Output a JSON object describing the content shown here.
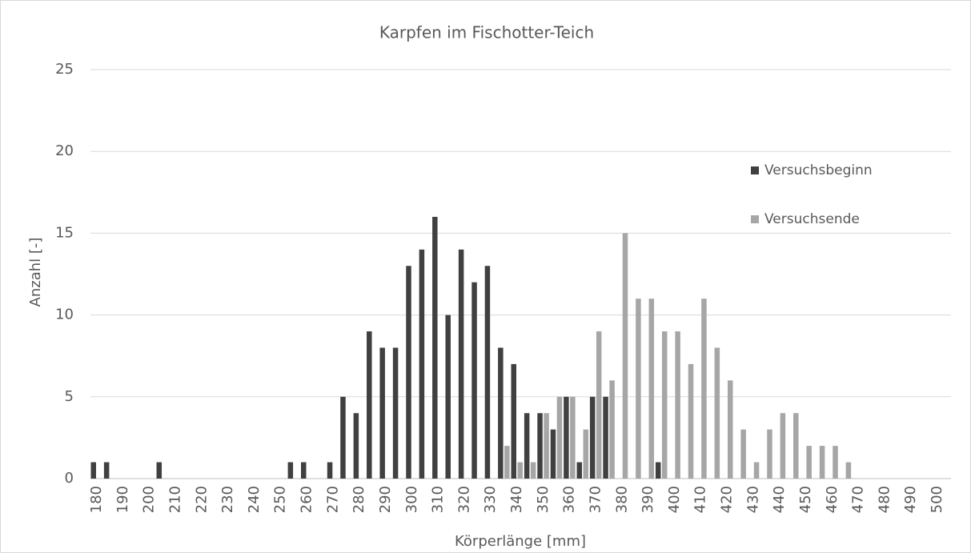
{
  "chart_data": {
    "type": "bar",
    "title": "Karpfen im Fischotter-Teich",
    "x_label": "Körperlänge [mm]",
    "y_label": "Anzahl [-]",
    "categories": [
      "180",
      null,
      "190",
      null,
      "200",
      null,
      "210",
      null,
      "220",
      null,
      "230",
      null,
      "240",
      null,
      "250",
      null,
      "260",
      null,
      "270",
      null,
      "280",
      null,
      "290",
      null,
      "300",
      null,
      "310",
      null,
      "320",
      null,
      "330",
      null,
      "340",
      null,
      "350",
      null,
      "360",
      null,
      "370",
      null,
      "380",
      null,
      "390",
      null,
      "400",
      null,
      "410",
      null,
      "420",
      null,
      "430",
      null,
      "440",
      null,
      "450",
      null,
      "460",
      null,
      "470",
      null,
      "480",
      null,
      "490",
      null,
      "500"
    ],
    "series": [
      {
        "name": "Versuchsbeginn",
        "color": "#404040",
        "values": [
          1,
          1,
          0,
          0,
          0,
          1,
          0,
          0,
          0,
          0,
          0,
          0,
          0,
          0,
          0,
          1,
          1,
          0,
          1,
          5,
          4,
          9,
          8,
          8,
          13,
          14,
          16,
          10,
          14,
          12,
          13,
          8,
          7,
          4,
          4,
          3,
          5,
          1,
          5,
          5,
          0,
          0,
          0,
          1,
          0,
          0,
          0,
          0,
          0,
          0,
          0,
          0,
          0,
          0,
          0,
          0,
          0,
          0,
          0,
          0,
          0,
          0,
          0,
          0,
          0
        ]
      },
      {
        "name": "Versuchsende",
        "color": "#a6a6a6",
        "values": [
          0,
          0,
          0,
          0,
          0,
          0,
          0,
          0,
          0,
          0,
          0,
          0,
          0,
          0,
          0,
          0,
          0,
          0,
          0,
          0,
          0,
          0,
          0,
          0,
          0,
          0,
          0,
          0,
          0,
          0,
          0,
          2,
          1,
          1,
          4,
          5,
          5,
          3,
          9,
          6,
          15,
          11,
          11,
          9,
          9,
          7,
          11,
          8,
          6,
          3,
          1,
          3,
          4,
          4,
          2,
          2,
          2,
          1,
          0,
          0,
          0,
          0,
          0,
          0,
          0
        ]
      }
    ],
    "ylim": [
      0,
      25
    ],
    "yticks": [
      0,
      5,
      10,
      15,
      20,
      25
    ],
    "grid": true,
    "legend": "right"
  }
}
